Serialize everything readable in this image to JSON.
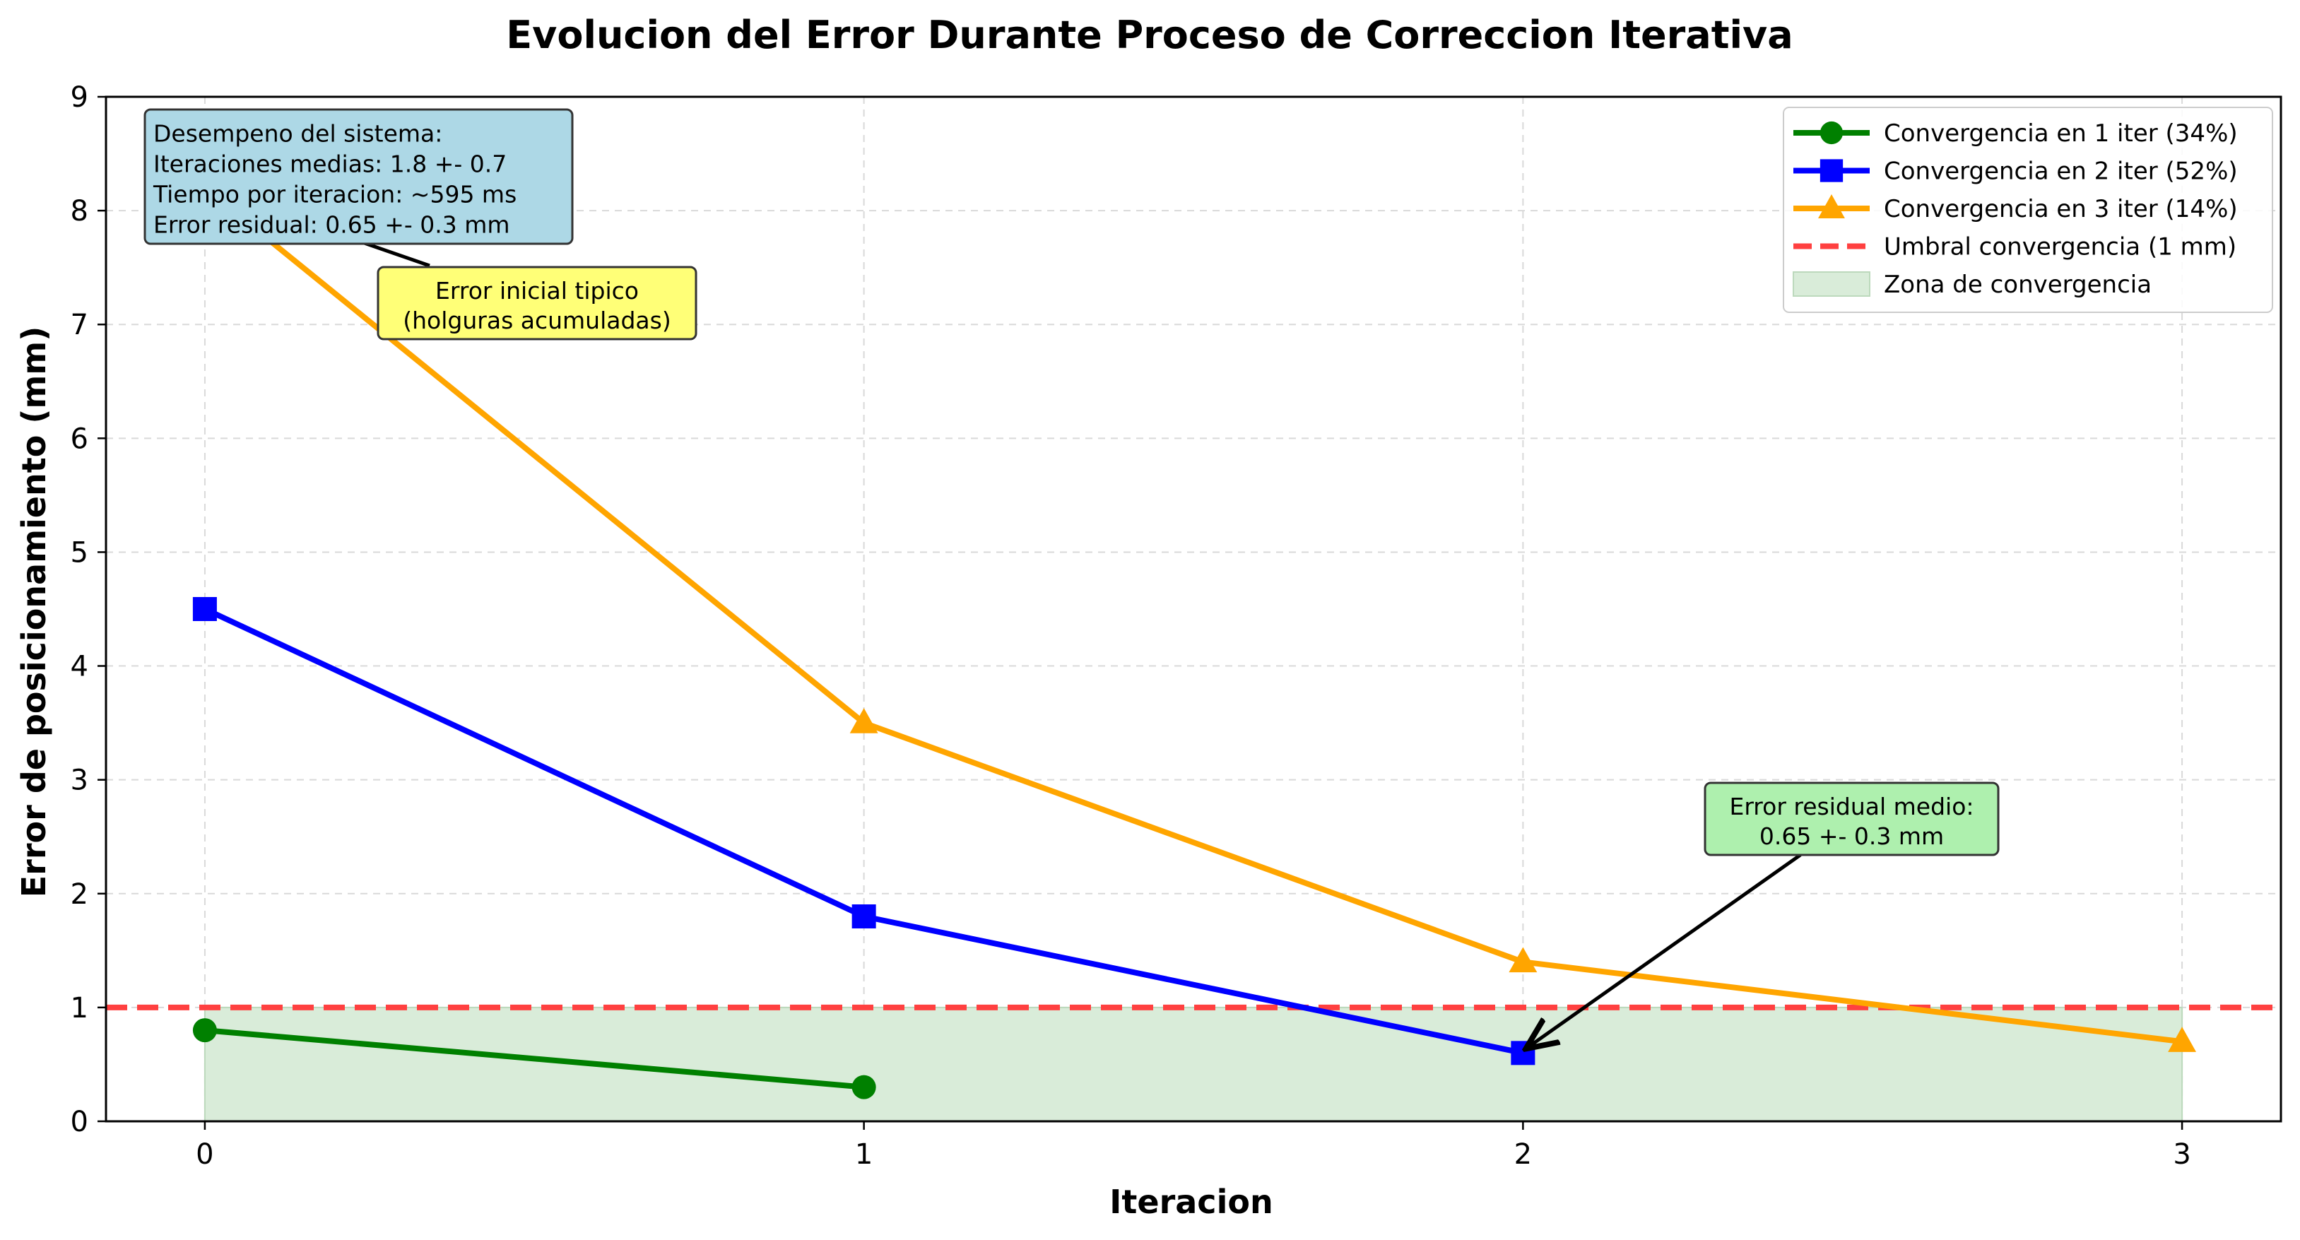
{
  "chart_data": {
    "type": "line",
    "title": "Evolucion del Error Durante Proceso de Correccion Iterativa",
    "xlabel": "Iteracion",
    "ylabel": "Error de posicionamiento (mm)",
    "xlim": [
      -0.15,
      3.15
    ],
    "ylim": [
      0,
      9
    ],
    "xticks": [
      0,
      1,
      2,
      3
    ],
    "yticks": [
      0,
      1,
      2,
      3,
      4,
      5,
      6,
      7,
      8,
      9
    ],
    "grid": true,
    "legend_position": "top-right",
    "series": [
      {
        "name": "Convergencia en 1 iter (34%)",
        "color": "#008000",
        "marker": "circle",
        "x": [
          0,
          1
        ],
        "y": [
          0.8,
          0.3
        ]
      },
      {
        "name": "Convergencia en 2 iter (52%)",
        "color": "#0000ff",
        "marker": "square",
        "x": [
          0,
          1,
          2
        ],
        "y": [
          4.5,
          1.8,
          0.6
        ]
      },
      {
        "name": "Convergencia en 3 iter (14%)",
        "color": "#ffa500",
        "marker": "triangle",
        "x": [
          0,
          1,
          2,
          3
        ],
        "y": [
          8.2,
          3.5,
          1.4,
          0.7
        ]
      }
    ],
    "threshold": {
      "name": "Umbral convergencia (1 mm)",
      "y": 1,
      "color": "#ff4040",
      "style": "dashed"
    },
    "zone": {
      "name": "Zona de convergencia",
      "x": [
        0,
        3
      ],
      "y": [
        0,
        1
      ],
      "color": "#d9ecd9"
    },
    "annotations": {
      "stats_box": {
        "lines": [
          "Desempeno del sistema:",
          "Iteraciones medias: 1.8 +- 0.7",
          "Tiempo por iteracion: ~595 ms",
          "Error residual: 0.65 +- 0.3 mm"
        ],
        "color": "#add8e6"
      },
      "initial_error": {
        "lines": [
          "Error inicial tipico",
          "(holguras acumuladas)"
        ],
        "color": "#ffff77",
        "point": [
          0,
          8.2
        ]
      },
      "residual": {
        "lines": [
          "Error residual medio:",
          "0.65 +- 0.3 mm"
        ],
        "color": "#aef0ae",
        "point": [
          2,
          0.6
        ]
      }
    }
  }
}
